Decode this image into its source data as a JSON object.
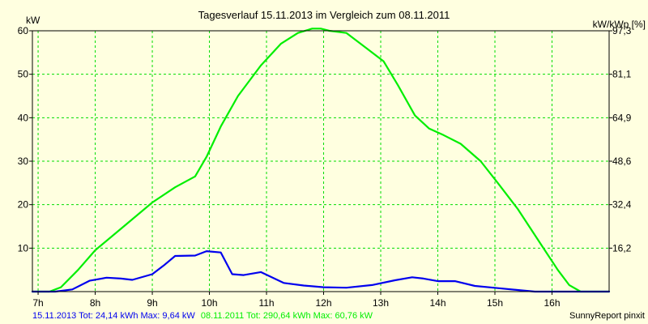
{
  "chart_data": {
    "type": "line",
    "title": "Tagesverlauf 15.11.2013 im Vergleich zum 08.11.2011",
    "ylabel_left": "kW",
    "ylabel_right": "kW/kWp [%]",
    "x_ticks": [
      "7h",
      "8h",
      "9h",
      "10h",
      "11h",
      "12h",
      "13h",
      "14h",
      "15h",
      "16h"
    ],
    "x_range": [
      6.9,
      17
    ],
    "y_ticks_left": [
      "60",
      "50",
      "40",
      "30",
      "20",
      "10"
    ],
    "y_ticks_left_values": [
      60,
      50,
      40,
      30,
      20,
      10
    ],
    "y_ticks_right": [
      "97,3",
      "81,1",
      "64,9",
      "48,6",
      "32,4",
      "16,2"
    ],
    "ylim": [
      0,
      60
    ],
    "grid": true,
    "legend": "bottom",
    "series": [
      {
        "name": "08.11.2011",
        "color": "#00ee00",
        "x": [
          6.9,
          7.2,
          7.4,
          7.7,
          8.0,
          8.5,
          9.0,
          9.4,
          9.75,
          9.95,
          10.2,
          10.5,
          10.9,
          11.25,
          11.55,
          11.8,
          11.95,
          12.1,
          12.4,
          12.75,
          13.05,
          13.3,
          13.6,
          13.85,
          14.1,
          14.4,
          14.75,
          15.05,
          15.4,
          15.8,
          16.1,
          16.3,
          16.5,
          17.0
        ],
        "values": [
          0,
          0,
          1,
          5,
          9.5,
          15,
          20.5,
          24,
          26.5,
          31,
          38,
          45,
          52,
          57,
          59.5,
          60.5,
          60.5,
          60,
          59.5,
          56,
          53,
          47.5,
          40.5,
          37.5,
          36,
          34,
          30,
          25,
          19,
          11,
          5,
          1.5,
          0,
          0
        ]
      },
      {
        "name": "15.11.2013",
        "color": "#0000ee",
        "x": [
          6.9,
          7.3,
          7.6,
          7.9,
          8.2,
          8.45,
          8.65,
          9.0,
          9.2,
          9.4,
          9.75,
          9.95,
          10.2,
          10.4,
          10.6,
          10.9,
          11.3,
          11.65,
          12.0,
          12.4,
          12.85,
          13.25,
          13.55,
          13.75,
          14.0,
          14.3,
          14.65,
          15.05,
          15.45,
          15.7,
          17.0
        ],
        "values": [
          0,
          0,
          0.5,
          2.5,
          3.2,
          3,
          2.7,
          4,
          6,
          8.2,
          8.3,
          9.3,
          9,
          4,
          3.8,
          4.5,
          2,
          1.4,
          1.0,
          0.9,
          1.5,
          2.6,
          3.3,
          3.0,
          2.4,
          2.4,
          1.3,
          0.8,
          0.3,
          0,
          0
        ]
      }
    ]
  },
  "footer": {
    "series1_text": "15.11.2013 Tot: 24,14 kWh Max: 9,64 kW",
    "series2_text": "08.11.2011 Tot: 290,64 kWh Max: 60,76 kW",
    "brand_text": "SunnyReport pinxit",
    "series1_color": "#0000ee",
    "series2_color": "#00ee00"
  },
  "colors": {
    "background": "#ffffe0",
    "grid": "#00dd00",
    "axes": "#000000"
  }
}
